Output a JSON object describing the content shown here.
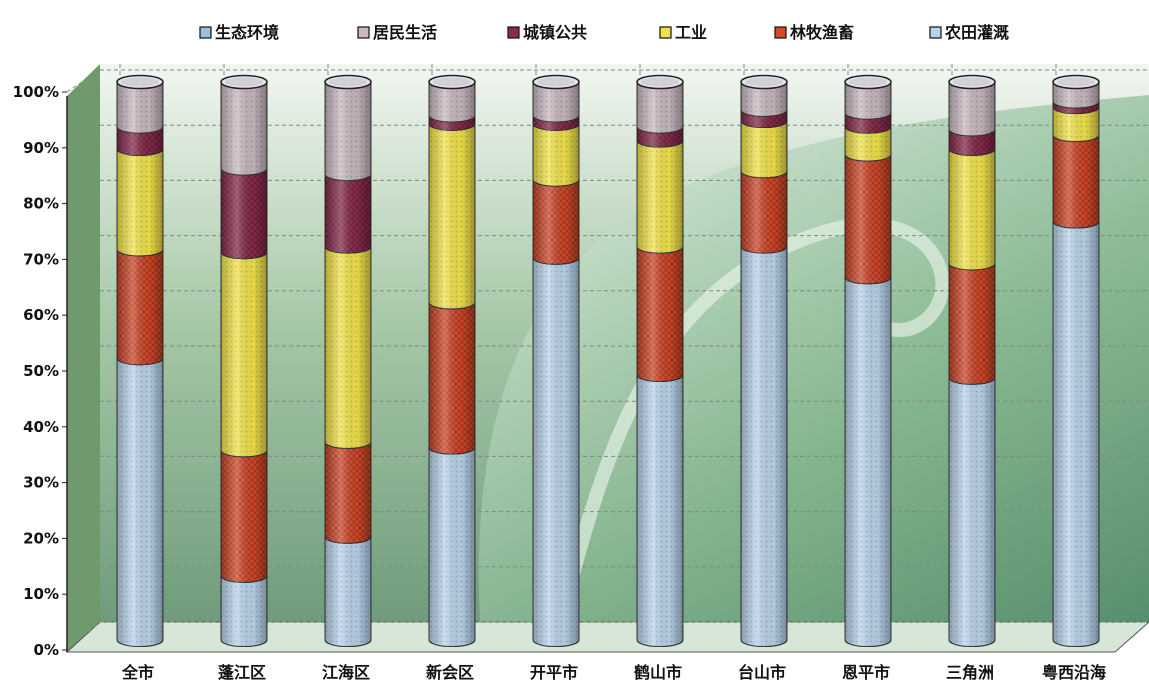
{
  "chart_data": {
    "type": "bar",
    "stacked": true,
    "style": "3d-cylinder",
    "title": "",
    "xlabel": "",
    "ylabel": "",
    "ylim": [
      0,
      100
    ],
    "yticks": [
      "0%",
      "10%",
      "20%",
      "30%",
      "40%",
      "50%",
      "60%",
      "70%",
      "80%",
      "90%",
      "100%"
    ],
    "grid": true,
    "legend_position": "top",
    "categories": [
      "全市",
      "蓬江区",
      "江海区",
      "新会区",
      "开平市",
      "鹤山市",
      "台山市",
      "恩平市",
      "三角洲",
      "粤西沿海"
    ],
    "series": [
      {
        "name": "农田灌溉",
        "color": "#b9d3ea",
        "values": [
          50.5,
          11.5,
          18.5,
          34.5,
          68.5,
          47.5,
          70.5,
          65.0,
          47.0,
          75.0
        ]
      },
      {
        "name": "林牧渔畜",
        "color": "#d8492a",
        "values": [
          19.5,
          22.5,
          17.0,
          26.0,
          14.0,
          23.0,
          13.5,
          22.0,
          20.5,
          15.5
        ]
      },
      {
        "name": "工业",
        "color": "#f0e24a",
        "values": [
          18.0,
          35.5,
          35.0,
          32.0,
          10.0,
          19.0,
          9.0,
          5.0,
          20.5,
          5.0
        ]
      },
      {
        "name": "城镇公共",
        "color": "#8c2a4e",
        "values": [
          4.0,
          15.0,
          13.0,
          1.5,
          1.5,
          2.5,
          2.0,
          2.5,
          3.5,
          1.0
        ]
      },
      {
        "name": "居民生活",
        "color": "#c8b8c0",
        "values": [
          8.0,
          15.5,
          16.5,
          6.0,
          6.0,
          8.0,
          5.0,
          5.5,
          8.5,
          3.5
        ]
      },
      {
        "name": "生态环境",
        "color": "#9cc0dc",
        "values": [
          0,
          0,
          0,
          0,
          0,
          0,
          0,
          0,
          0,
          0
        ]
      }
    ],
    "legend_order": [
      "生态环境",
      "居民生活",
      "城镇公共",
      "工业",
      "林牧渔畜",
      "农田灌溉"
    ]
  },
  "colors": {
    "wall_top": "#f2f6f2",
    "wall_mid": "#a8c9a8",
    "wall_bottom": "#6f9c7c",
    "side_wall": "#6e9a6e",
    "floor": "#d7e7d7",
    "grid": "#7e8b80",
    "axis_text": "#111111"
  }
}
